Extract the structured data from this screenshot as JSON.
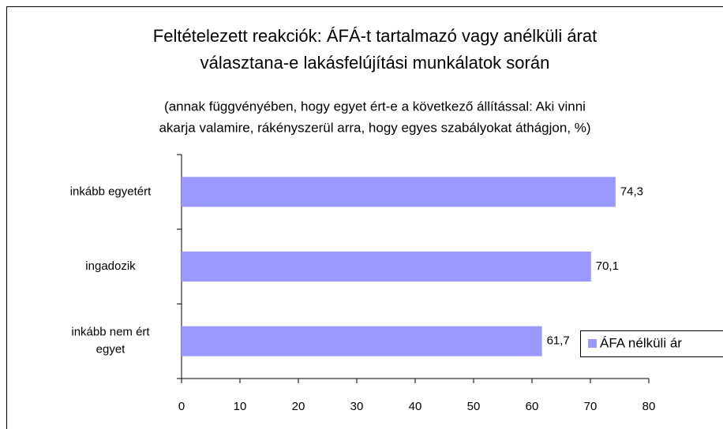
{
  "chart_data": {
    "type": "bar",
    "orientation": "horizontal",
    "title": [
      "Feltételezett reakciók: ÁFÁ-t tartalmazó vagy anélküli árat",
      "választana-e lakásfelújítási munkálatok során"
    ],
    "subtitle": [
      "(annak függvényében, hogy egyet ért-e a következő állítással: Aki vinni",
      "akarja valamire, rákényszerül arra, hogy egyes szabályokat áthágjon, %)"
    ],
    "categories": [
      "inkább egyetért",
      "ingadozik",
      "inkább nem ért egyet"
    ],
    "series": [
      {
        "name": "ÁFA nélküli ár",
        "color": "#9999ff",
        "values": [
          74.3,
          70.1,
          61.7
        ],
        "value_labels": [
          "74,3",
          "70,1",
          "61,7"
        ]
      }
    ],
    "xlim": [
      0,
      80
    ],
    "xticks": [
      0,
      10,
      20,
      30,
      40,
      50,
      60,
      70,
      80
    ],
    "grid": false,
    "legend": "right"
  }
}
